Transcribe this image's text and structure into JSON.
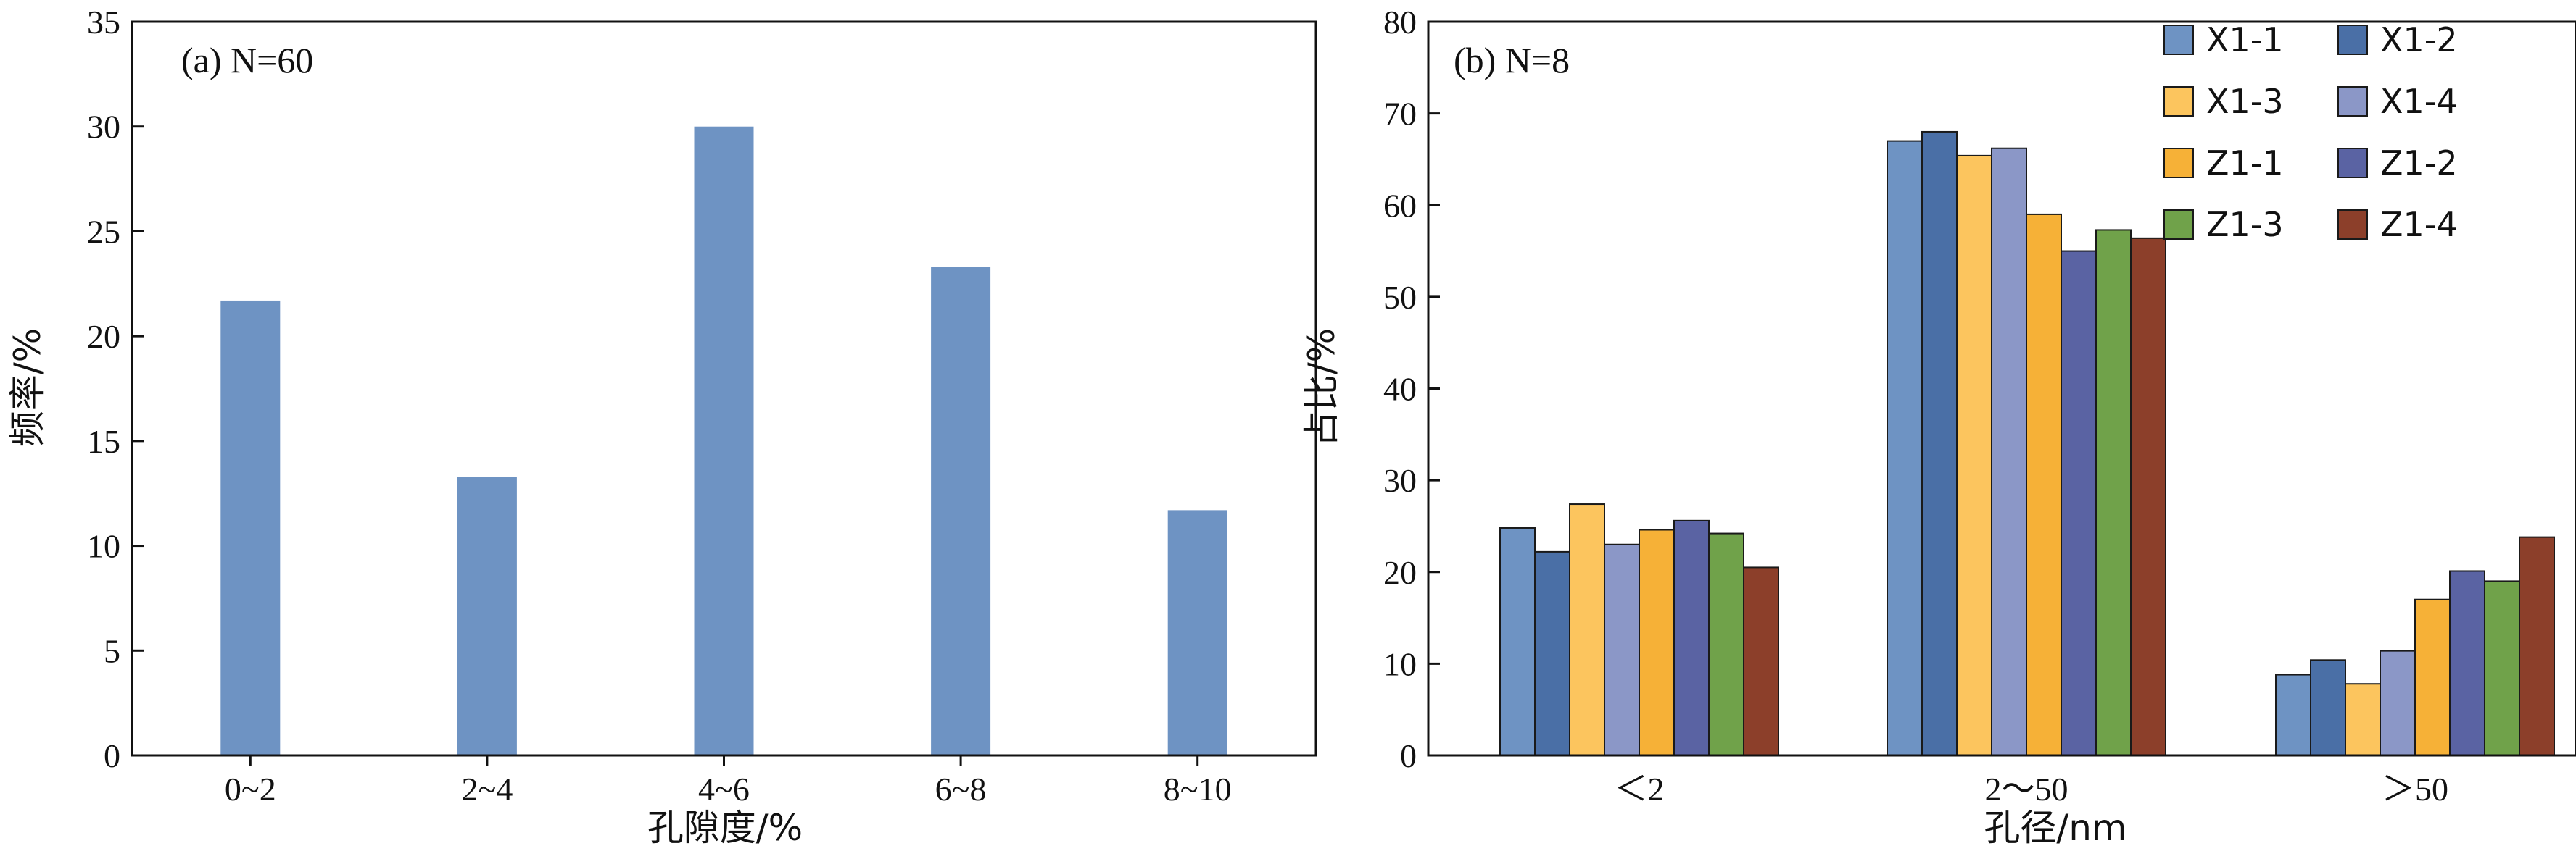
{
  "chart_data": [
    {
      "type": "bar",
      "panel_label": "(a) N=60",
      "categories": [
        "0~2",
        "2~4",
        "4~6",
        "6~8",
        "8~10"
      ],
      "values": [
        21.7,
        13.3,
        30.0,
        23.3,
        11.7
      ],
      "xlabel": "孔隙度/%",
      "ylabel": "频率/%",
      "ylim": [
        0,
        35
      ],
      "yticks": [
        0,
        5,
        10,
        15,
        20,
        25,
        30,
        35
      ],
      "bar_color": "#6e93c3",
      "grid": false
    },
    {
      "type": "bar",
      "panel_label": "(b) N=8",
      "categories": [
        "＜2",
        "2～50",
        "＞50"
      ],
      "series": [
        {
          "name": "X1-1",
          "color": "#6e93c3",
          "values": [
            24.8,
            67.0,
            8.8
          ]
        },
        {
          "name": "X1-2",
          "color": "#4a6fa6",
          "values": [
            22.2,
            68.0,
            10.4
          ]
        },
        {
          "name": "X1-3",
          "color": "#fcc55e",
          "values": [
            27.4,
            65.4,
            7.8
          ]
        },
        {
          "name": "X1-4",
          "color": "#8b97c7",
          "values": [
            23.0,
            66.2,
            11.4
          ]
        },
        {
          "name": "Z1-1",
          "color": "#f6b137",
          "values": [
            24.6,
            59.0,
            17.0
          ]
        },
        {
          "name": "Z1-2",
          "color": "#5a63a3",
          "values": [
            25.6,
            55.0,
            20.1
          ]
        },
        {
          "name": "Z1-3",
          "color": "#70a24a",
          "values": [
            24.2,
            57.3,
            19.0
          ]
        },
        {
          "name": "Z1-4",
          "color": "#8c3f2a",
          "values": [
            20.5,
            56.4,
            23.8
          ]
        }
      ],
      "xlabel": "孔径/nm",
      "ylabel": "占比/%",
      "ylim": [
        0,
        80
      ],
      "yticks": [
        0,
        10,
        20,
        30,
        40,
        50,
        60,
        70,
        80
      ],
      "legend_position": "top-right",
      "grid": false
    }
  ]
}
